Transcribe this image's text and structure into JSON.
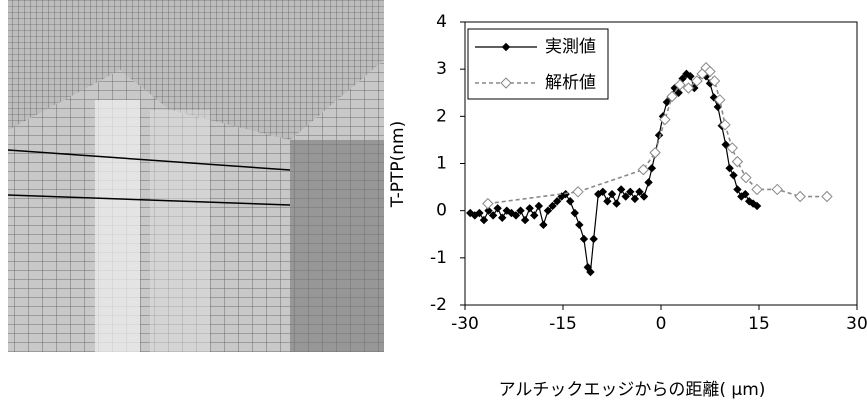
{
  "chart_data": {
    "type": "line",
    "xlabel": "アルチックエッジからの距離( μm)",
    "ylabel": "T-PTP(nm)",
    "xlim": [
      -30,
      30
    ],
    "xticks": [
      -30,
      -15,
      0,
      15,
      30
    ],
    "ylim": [
      -2,
      4
    ],
    "yticks": [
      -2,
      -1,
      0,
      1,
      2,
      3,
      4
    ],
    "legend": "top-left",
    "series": [
      {
        "name": "実測値",
        "color": "#000000",
        "dashed": false,
        "marker_filled": true,
        "x": [
          -29.2,
          -28.5,
          -27.8,
          -27.1,
          -26.4,
          -25.7,
          -25.0,
          -24.3,
          -23.6,
          -22.9,
          -22.2,
          -21.5,
          -20.8,
          -20.1,
          -19.4,
          -18.7,
          -18.0,
          -17.3,
          -16.6,
          -15.9,
          -15.2,
          -14.6,
          -13.9,
          -13.2,
          -12.5,
          -11.8,
          -11.2,
          -10.8,
          -10.3,
          -9.6,
          -8.9,
          -8.2,
          -7.5,
          -6.8,
          -6.1,
          -5.4,
          -4.7,
          -4.0,
          -3.3,
          -2.6,
          -1.9,
          -1.4,
          -0.9,
          -0.3,
          0.3,
          0.9,
          1.5,
          2.1,
          2.7,
          3.3,
          3.9,
          4.5,
          5.1,
          5.7,
          6.3,
          6.9,
          7.5,
          8.1,
          8.7,
          9.3,
          9.9,
          10.5,
          11.1,
          11.7,
          12.3,
          12.9,
          13.5,
          14.1,
          14.7
        ],
        "values": [
          -0.05,
          -0.1,
          -0.05,
          -0.2,
          0.0,
          -0.1,
          0.05,
          -0.15,
          0.0,
          -0.05,
          -0.1,
          0.0,
          -0.2,
          0.05,
          -0.1,
          0.1,
          -0.3,
          0.0,
          0.1,
          0.2,
          0.3,
          0.35,
          0.2,
          -0.05,
          -0.3,
          -0.6,
          -1.2,
          -1.3,
          -0.6,
          0.35,
          0.4,
          0.2,
          0.35,
          0.15,
          0.45,
          0.3,
          0.4,
          0.25,
          0.4,
          0.3,
          0.6,
          0.9,
          1.2,
          1.6,
          2.0,
          2.3,
          2.4,
          2.6,
          2.5,
          2.8,
          2.9,
          2.85,
          2.6,
          2.75,
          2.9,
          2.85,
          2.7,
          2.4,
          2.2,
          1.8,
          1.4,
          0.9,
          0.75,
          0.45,
          0.3,
          0.35,
          0.2,
          0.15,
          0.1
        ]
      },
      {
        "name": "解析値",
        "color": "#888888",
        "dashed": true,
        "marker_filled": false,
        "x": [
          -26.5,
          -12.7,
          -2.7,
          -0.9,
          0.6,
          1.7,
          2.9,
          4.2,
          5.5,
          6.3,
          6.9,
          7.5,
          8.2,
          9.0,
          9.8,
          10.9,
          11.7,
          13.0,
          14.7,
          17.8,
          21.3,
          25.4
        ],
        "values": [
          0.15,
          0.4,
          0.87,
          1.23,
          1.93,
          2.42,
          2.67,
          2.6,
          2.75,
          2.9,
          3.03,
          2.95,
          2.75,
          2.35,
          1.82,
          1.33,
          1.04,
          0.7,
          0.45,
          0.45,
          0.3,
          0.3
        ]
      }
    ]
  }
}
